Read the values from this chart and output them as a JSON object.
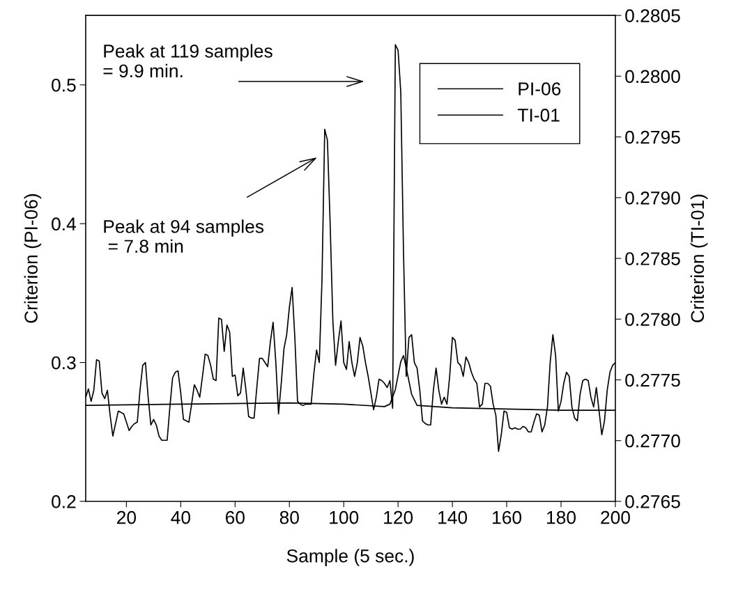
{
  "chart_data": {
    "type": "line",
    "xlabel": "Sample (5 sec.)",
    "ylabel": "Criterion (PI-06)",
    "y2label": "Criterion (TI-01)",
    "xlim": [
      5,
      200
    ],
    "xticks": [
      20,
      40,
      60,
      80,
      100,
      120,
      140,
      160,
      180,
      200
    ],
    "ylim": [
      0.2,
      0.55
    ],
    "yticks": [
      0.2,
      0.3,
      0.4,
      0.5
    ],
    "y2lim": [
      0.2765,
      0.2805
    ],
    "y2ticks": [
      0.2765,
      {
        "value": 0.277,
        "label": "0.2770"
      },
      0.2775,
      {
        "value": 0.278,
        "label": "0.2780"
      },
      0.2785,
      {
        "value": 0.279,
        "label": "0.2790"
      },
      0.2795,
      {
        "value": 0.28,
        "label": "0.2800"
      },
      0.2805
    ],
    "grid": false,
    "legend": "top right",
    "marker": "none",
    "line_style": "solid",
    "annotations": [
      "Peak at 119 samples\n= 9.9 min.",
      "Peak at 94 samples\n = 7.8 min"
    ],
    "series": [
      {
        "name": "PI-06",
        "color": "#000000",
        "x": [
          5,
          6,
          7,
          8,
          9,
          10,
          11,
          12,
          13,
          14,
          15,
          16,
          17,
          18,
          19,
          20,
          21,
          22,
          23,
          24,
          25,
          26,
          27,
          28,
          29,
          30,
          31,
          32,
          33,
          34,
          35,
          36,
          37,
          38,
          39,
          40,
          41,
          42,
          43,
          44,
          45,
          46,
          47,
          48,
          49,
          50,
          51,
          52,
          53,
          54,
          55,
          56,
          57,
          58,
          59,
          60,
          61,
          62,
          63,
          64,
          65,
          66,
          67,
          68,
          69,
          70,
          71,
          72,
          73,
          74,
          75,
          76,
          77,
          78,
          79,
          80,
          81,
          82,
          83,
          84,
          85,
          86,
          87,
          88,
          89,
          90,
          91,
          92,
          93,
          94,
          95,
          96,
          97,
          98,
          99,
          100,
          101,
          102,
          103,
          104,
          105,
          106,
          107,
          108,
          109,
          110,
          111,
          112,
          113,
          114,
          115,
          116,
          117,
          118,
          119,
          120,
          121,
          122,
          123,
          124,
          125,
          126,
          127,
          128,
          129,
          130,
          131,
          132,
          133,
          134,
          135,
          136,
          137,
          138,
          139,
          140,
          141,
          142,
          143,
          144,
          145,
          146,
          147,
          148,
          149,
          150,
          151,
          152,
          153,
          154,
          155,
          156,
          157,
          158,
          159,
          160,
          161,
          162,
          163,
          164,
          165,
          166,
          167,
          168,
          169,
          170,
          171,
          172,
          173,
          174,
          175,
          176,
          177,
          178,
          179,
          180,
          181,
          182,
          183,
          184,
          185,
          186,
          187,
          188,
          189,
          190,
          191,
          192,
          193,
          194,
          195,
          196,
          197,
          198,
          199,
          200
        ],
        "values": [
          0.275,
          0.281,
          0.272,
          0.28,
          0.302,
          0.301,
          0.278,
          0.274,
          0.28,
          0.262,
          0.247,
          0.256,
          0.265,
          0.264,
          0.263,
          0.257,
          0.251,
          0.254,
          0.256,
          0.257,
          0.28,
          0.298,
          0.3,
          0.275,
          0.255,
          0.259,
          0.255,
          0.247,
          0.244,
          0.244,
          0.244,
          0.268,
          0.289,
          0.293,
          0.294,
          0.278,
          0.259,
          0.258,
          0.257,
          0.27,
          0.284,
          0.28,
          0.275,
          0.29,
          0.306,
          0.305,
          0.298,
          0.288,
          0.287,
          0.332,
          0.331,
          0.308,
          0.327,
          0.322,
          0.29,
          0.291,
          0.276,
          0.278,
          0.296,
          0.28,
          0.261,
          0.26,
          0.26,
          0.282,
          0.303,
          0.303,
          0.3,
          0.297,
          0.315,
          0.329,
          0.3,
          0.263,
          0.285,
          0.31,
          0.32,
          0.34,
          0.354,
          0.318,
          0.272,
          0.27,
          0.269,
          0.27,
          0.27,
          0.27,
          0.292,
          0.309,
          0.3,
          0.36,
          0.468,
          0.46,
          0.4,
          0.33,
          0.298,
          0.315,
          0.33,
          0.3,
          0.295,
          0.315,
          0.3,
          0.29,
          0.3,
          0.318,
          0.312,
          0.3,
          0.29,
          0.278,
          0.266,
          0.275,
          0.288,
          0.287,
          0.285,
          0.282,
          0.287,
          0.267,
          0.529,
          0.525,
          0.495,
          0.38,
          0.29,
          0.318,
          0.32,
          0.3,
          0.296,
          0.28,
          0.258,
          0.256,
          0.255,
          0.255,
          0.28,
          0.296,
          0.28,
          0.27,
          0.275,
          0.27,
          0.29,
          0.318,
          0.316,
          0.3,
          0.298,
          0.29,
          0.304,
          0.3,
          0.293,
          0.288,
          0.285,
          0.268,
          0.27,
          0.285,
          0.285,
          0.283,
          0.27,
          0.262,
          0.236,
          0.248,
          0.265,
          0.264,
          0.253,
          0.252,
          0.253,
          0.252,
          0.252,
          0.254,
          0.253,
          0.25,
          0.25,
          0.257,
          0.263,
          0.262,
          0.25,
          0.255,
          0.268,
          0.3,
          0.32,
          0.305,
          0.265,
          0.272,
          0.285,
          0.293,
          0.29,
          0.268,
          0.26,
          0.258,
          0.277,
          0.287,
          0.288,
          0.287,
          0.275,
          0.268,
          0.282,
          0.265,
          0.248,
          0.258,
          0.28,
          0.293,
          0.298,
          0.3
        ]
      },
      {
        "name": "TI-01",
        "color": "#000000",
        "axis": "y2",
        "x": [
          5,
          40,
          80,
          100,
          115,
          117,
          119,
          121,
          122,
          123,
          125,
          127,
          140,
          160,
          180,
          200
        ],
        "values": [
          0.27729,
          0.2773,
          0.27731,
          0.2773,
          0.27728,
          0.2773,
          0.27742,
          0.27765,
          0.2777,
          0.2776,
          0.27738,
          0.27729,
          0.27727,
          0.27726,
          0.27725,
          0.27725
        ]
      }
    ]
  }
}
